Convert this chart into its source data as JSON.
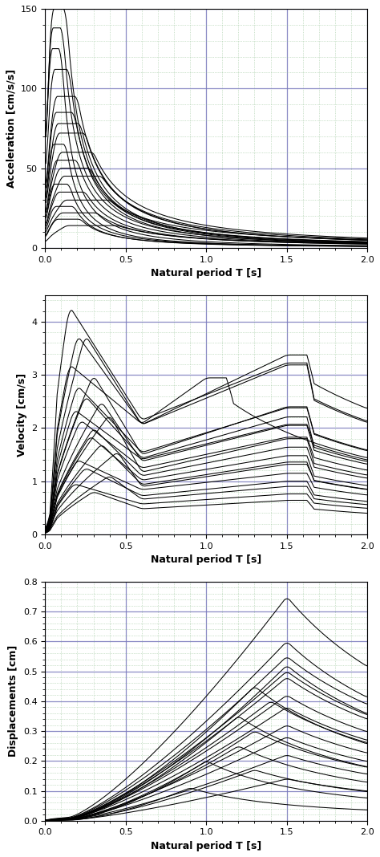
{
  "figsize": [
    4.74,
    10.68
  ],
  "dpi": 100,
  "background_color": "#ffffff",
  "n_records": 20,
  "plots": [
    {
      "ylabel": "Acceleration [cm/s/s]",
      "xlabel": "Natural period T [s]",
      "ylim": [
        0,
        150
      ],
      "yticks": [
        0,
        50,
        100,
        150
      ],
      "xlim": [
        0.0,
        2.0
      ],
      "xticks": [
        0.0,
        0.5,
        1.0,
        1.5,
        2.0
      ],
      "major_grid_color": "#7777bb",
      "minor_grid_color": "#88bb88",
      "type": "acceleration"
    },
    {
      "ylabel": "Velocity [cm/s]",
      "xlabel": "Natural period T [s]",
      "ylim": [
        0,
        4.5
      ],
      "yticks": [
        0,
        1,
        2,
        3,
        4
      ],
      "xlim": [
        0.0,
        2.0
      ],
      "xticks": [
        0.0,
        0.5,
        1.0,
        1.5,
        2.0
      ],
      "major_grid_color": "#7777bb",
      "minor_grid_color": "#88bb88",
      "type": "velocity"
    },
    {
      "ylabel": "Displacements [cm]",
      "xlabel": "Natural period T [s]",
      "ylim": [
        0.0,
        0.8
      ],
      "yticks": [
        0.0,
        0.1,
        0.2,
        0.3,
        0.4,
        0.5,
        0.6,
        0.7,
        0.8
      ],
      "xlim": [
        0.0,
        2.0
      ],
      "xticks": [
        0.0,
        0.5,
        1.0,
        1.5,
        2.0
      ],
      "major_grid_color": "#7777bb",
      "minor_grid_color": "#88bb88",
      "type": "displacement"
    }
  ],
  "line_color": "#000000",
  "line_width": 0.75,
  "font_size_label": 9,
  "font_size_tick": 8
}
